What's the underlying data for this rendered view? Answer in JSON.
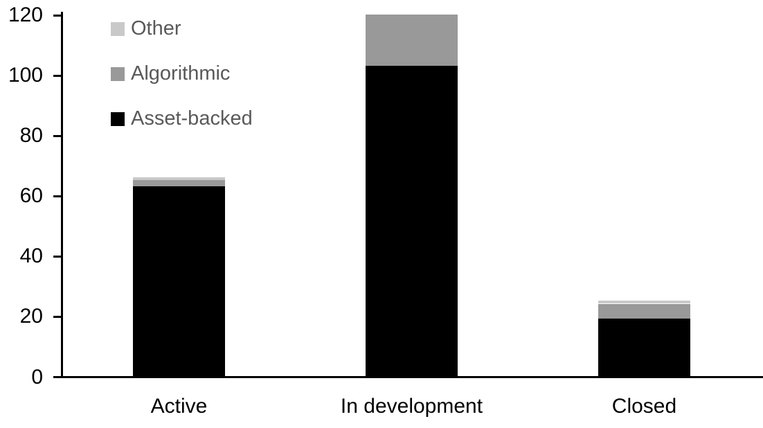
{
  "chart_data": {
    "type": "bar",
    "stacked": true,
    "title": "",
    "xlabel": "",
    "ylabel": "",
    "categories": [
      "Active",
      "In development",
      "Closed"
    ],
    "series": [
      {
        "name": "Asset-backed",
        "color": "#000000",
        "values": [
          63,
          103,
          19
        ]
      },
      {
        "name": "Algorithmic",
        "color": "#999999",
        "values": [
          2,
          17,
          5
        ]
      },
      {
        "name": "Other",
        "color": "#c9c9c9",
        "values": [
          1,
          0,
          1
        ]
      }
    ],
    "totals": [
      66,
      120,
      25
    ],
    "yticks": [
      0,
      20,
      40,
      60,
      80,
      100,
      120
    ],
    "ylim": [
      0,
      120
    ],
    "grid": false,
    "legend_position": "top-left-inside",
    "legend_order_top_to_bottom": [
      "Other",
      "Algorithmic",
      "Asset-backed"
    ],
    "legend_text_color": "#595959",
    "axis_color": "#000000",
    "background_color": "#ffffff"
  }
}
